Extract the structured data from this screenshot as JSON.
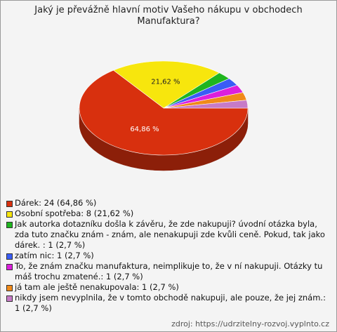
{
  "chart_data": {
    "type": "pie3d",
    "title": "Jaký je převážně hlavní motiv Vašeho nákupu v obchodech Manufaktura?",
    "categories": [
      "Dárek: 24 (64,86 %)",
      "Osobní spotřeba: 8 (21,62 %)",
      "Jak autorka dotazníku došla k závěru, že zde nakupuji? úvodní otázka byla, zda tuto značku znám - znám, ale nenakupuji zde kvůli ceně. Pokud, tak jako dárek. : 1 (2,7 %)",
      "zatím nic: 1 (2,7 %)",
      "To, že znám značku manufaktura, neimplikuje to, že v ní nakupuji. Otázky tu máš trochu zmatené.: 1 (2,7 %)",
      "já tam ale ještě nenakupovala: 1 (2,7 %)",
      "nikdy jsem nevyplnila, že v tomto obchodě nakupuji, ale pouze, že jej znám.: 1 (2,7 %)"
    ],
    "values": [
      64.86,
      21.62,
      2.7,
      2.7,
      2.7,
      2.7,
      2.7
    ],
    "value_labels": [
      "64,86 %",
      "21,62 %",
      null,
      null,
      null,
      null,
      null
    ],
    "colors": [
      "#d8300e",
      "#f7e60d",
      "#1fb51f",
      "#3a5cf5",
      "#dc1fdc",
      "#f08a1a",
      "#c77bc7"
    ],
    "source": "zdroj: https://udrzitelny-rozvoj.vyplnto.cz"
  }
}
